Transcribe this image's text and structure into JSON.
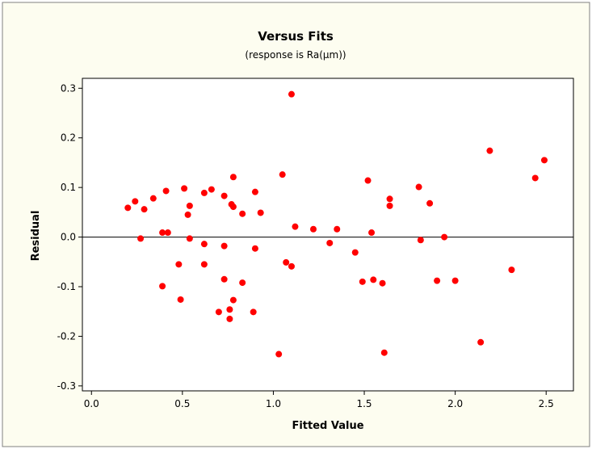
{
  "chart_data": {
    "type": "scatter",
    "title": "Versus Fits",
    "subtitle": "(response is Ra(µm))",
    "xlabel": "Fitted Value",
    "ylabel": "Residual",
    "xlim": [
      -0.05,
      2.65
    ],
    "ylim": [
      -0.31,
      0.32
    ],
    "x_ticks": [
      0.0,
      0.5,
      1.0,
      1.5,
      2.0,
      2.5
    ],
    "y_ticks": [
      -0.3,
      -0.2,
      -0.1,
      0.0,
      0.1,
      0.2,
      0.3
    ],
    "x_tick_labels": [
      "0.0",
      "0.5",
      "1.0",
      "1.5",
      "2.0",
      "2.5"
    ],
    "y_tick_labels": [
      "-0.3",
      "-0.2",
      "-0.1",
      "0.0",
      "0.1",
      "0.2",
      "0.3"
    ],
    "reference_line_y": 0.0,
    "grid": false,
    "point_color": "#ff0000",
    "points": [
      {
        "x": 0.2,
        "y": 0.059
      },
      {
        "x": 0.24,
        "y": 0.072
      },
      {
        "x": 0.27,
        "y": -0.003
      },
      {
        "x": 0.29,
        "y": 0.056
      },
      {
        "x": 0.34,
        "y": 0.078
      },
      {
        "x": 0.39,
        "y": -0.099
      },
      {
        "x": 0.39,
        "y": 0.009
      },
      {
        "x": 0.41,
        "y": 0.093
      },
      {
        "x": 0.42,
        "y": 0.009
      },
      {
        "x": 0.48,
        "y": -0.055
      },
      {
        "x": 0.49,
        "y": -0.126
      },
      {
        "x": 0.51,
        "y": 0.098
      },
      {
        "x": 0.53,
        "y": 0.045
      },
      {
        "x": 0.54,
        "y": 0.063
      },
      {
        "x": 0.54,
        "y": -0.003
      },
      {
        "x": 0.62,
        "y": 0.089
      },
      {
        "x": 0.62,
        "y": -0.014
      },
      {
        "x": 0.62,
        "y": -0.055
      },
      {
        "x": 0.66,
        "y": 0.096
      },
      {
        "x": 0.7,
        "y": -0.151
      },
      {
        "x": 0.73,
        "y": 0.083
      },
      {
        "x": 0.73,
        "y": -0.018
      },
      {
        "x": 0.73,
        "y": -0.085
      },
      {
        "x": 0.76,
        "y": -0.146
      },
      {
        "x": 0.76,
        "y": -0.165
      },
      {
        "x": 0.78,
        "y": 0.121
      },
      {
        "x": 0.77,
        "y": 0.066
      },
      {
        "x": 0.78,
        "y": 0.061
      },
      {
        "x": 0.78,
        "y": -0.127
      },
      {
        "x": 0.83,
        "y": 0.047
      },
      {
        "x": 0.83,
        "y": -0.092
      },
      {
        "x": 0.89,
        "y": -0.151
      },
      {
        "x": 0.9,
        "y": 0.091
      },
      {
        "x": 0.9,
        "y": -0.023
      },
      {
        "x": 0.93,
        "y": 0.049
      },
      {
        "x": 1.03,
        "y": -0.236
      },
      {
        "x": 1.05,
        "y": 0.126
      },
      {
        "x": 1.07,
        "y": -0.051
      },
      {
        "x": 1.1,
        "y": 0.288
      },
      {
        "x": 1.1,
        "y": -0.059
      },
      {
        "x": 1.12,
        "y": 0.021
      },
      {
        "x": 1.22,
        "y": 0.016
      },
      {
        "x": 1.31,
        "y": -0.012
      },
      {
        "x": 1.35,
        "y": 0.016
      },
      {
        "x": 1.45,
        "y": -0.031
      },
      {
        "x": 1.49,
        "y": -0.09
      },
      {
        "x": 1.52,
        "y": 0.114
      },
      {
        "x": 1.54,
        "y": 0.009
      },
      {
        "x": 1.55,
        "y": -0.086
      },
      {
        "x": 1.6,
        "y": -0.093
      },
      {
        "x": 1.61,
        "y": -0.233
      },
      {
        "x": 1.64,
        "y": 0.077
      },
      {
        "x": 1.64,
        "y": 0.063
      },
      {
        "x": 1.8,
        "y": 0.101
      },
      {
        "x": 1.81,
        "y": -0.006
      },
      {
        "x": 1.86,
        "y": 0.068
      },
      {
        "x": 1.9,
        "y": -0.088
      },
      {
        "x": 1.94,
        "y": 0.0
      },
      {
        "x": 2.0,
        "y": -0.088
      },
      {
        "x": 2.14,
        "y": -0.212
      },
      {
        "x": 2.19,
        "y": 0.174
      },
      {
        "x": 2.31,
        "y": -0.066
      },
      {
        "x": 2.44,
        "y": 0.119
      },
      {
        "x": 2.49,
        "y": 0.155
      }
    ]
  }
}
